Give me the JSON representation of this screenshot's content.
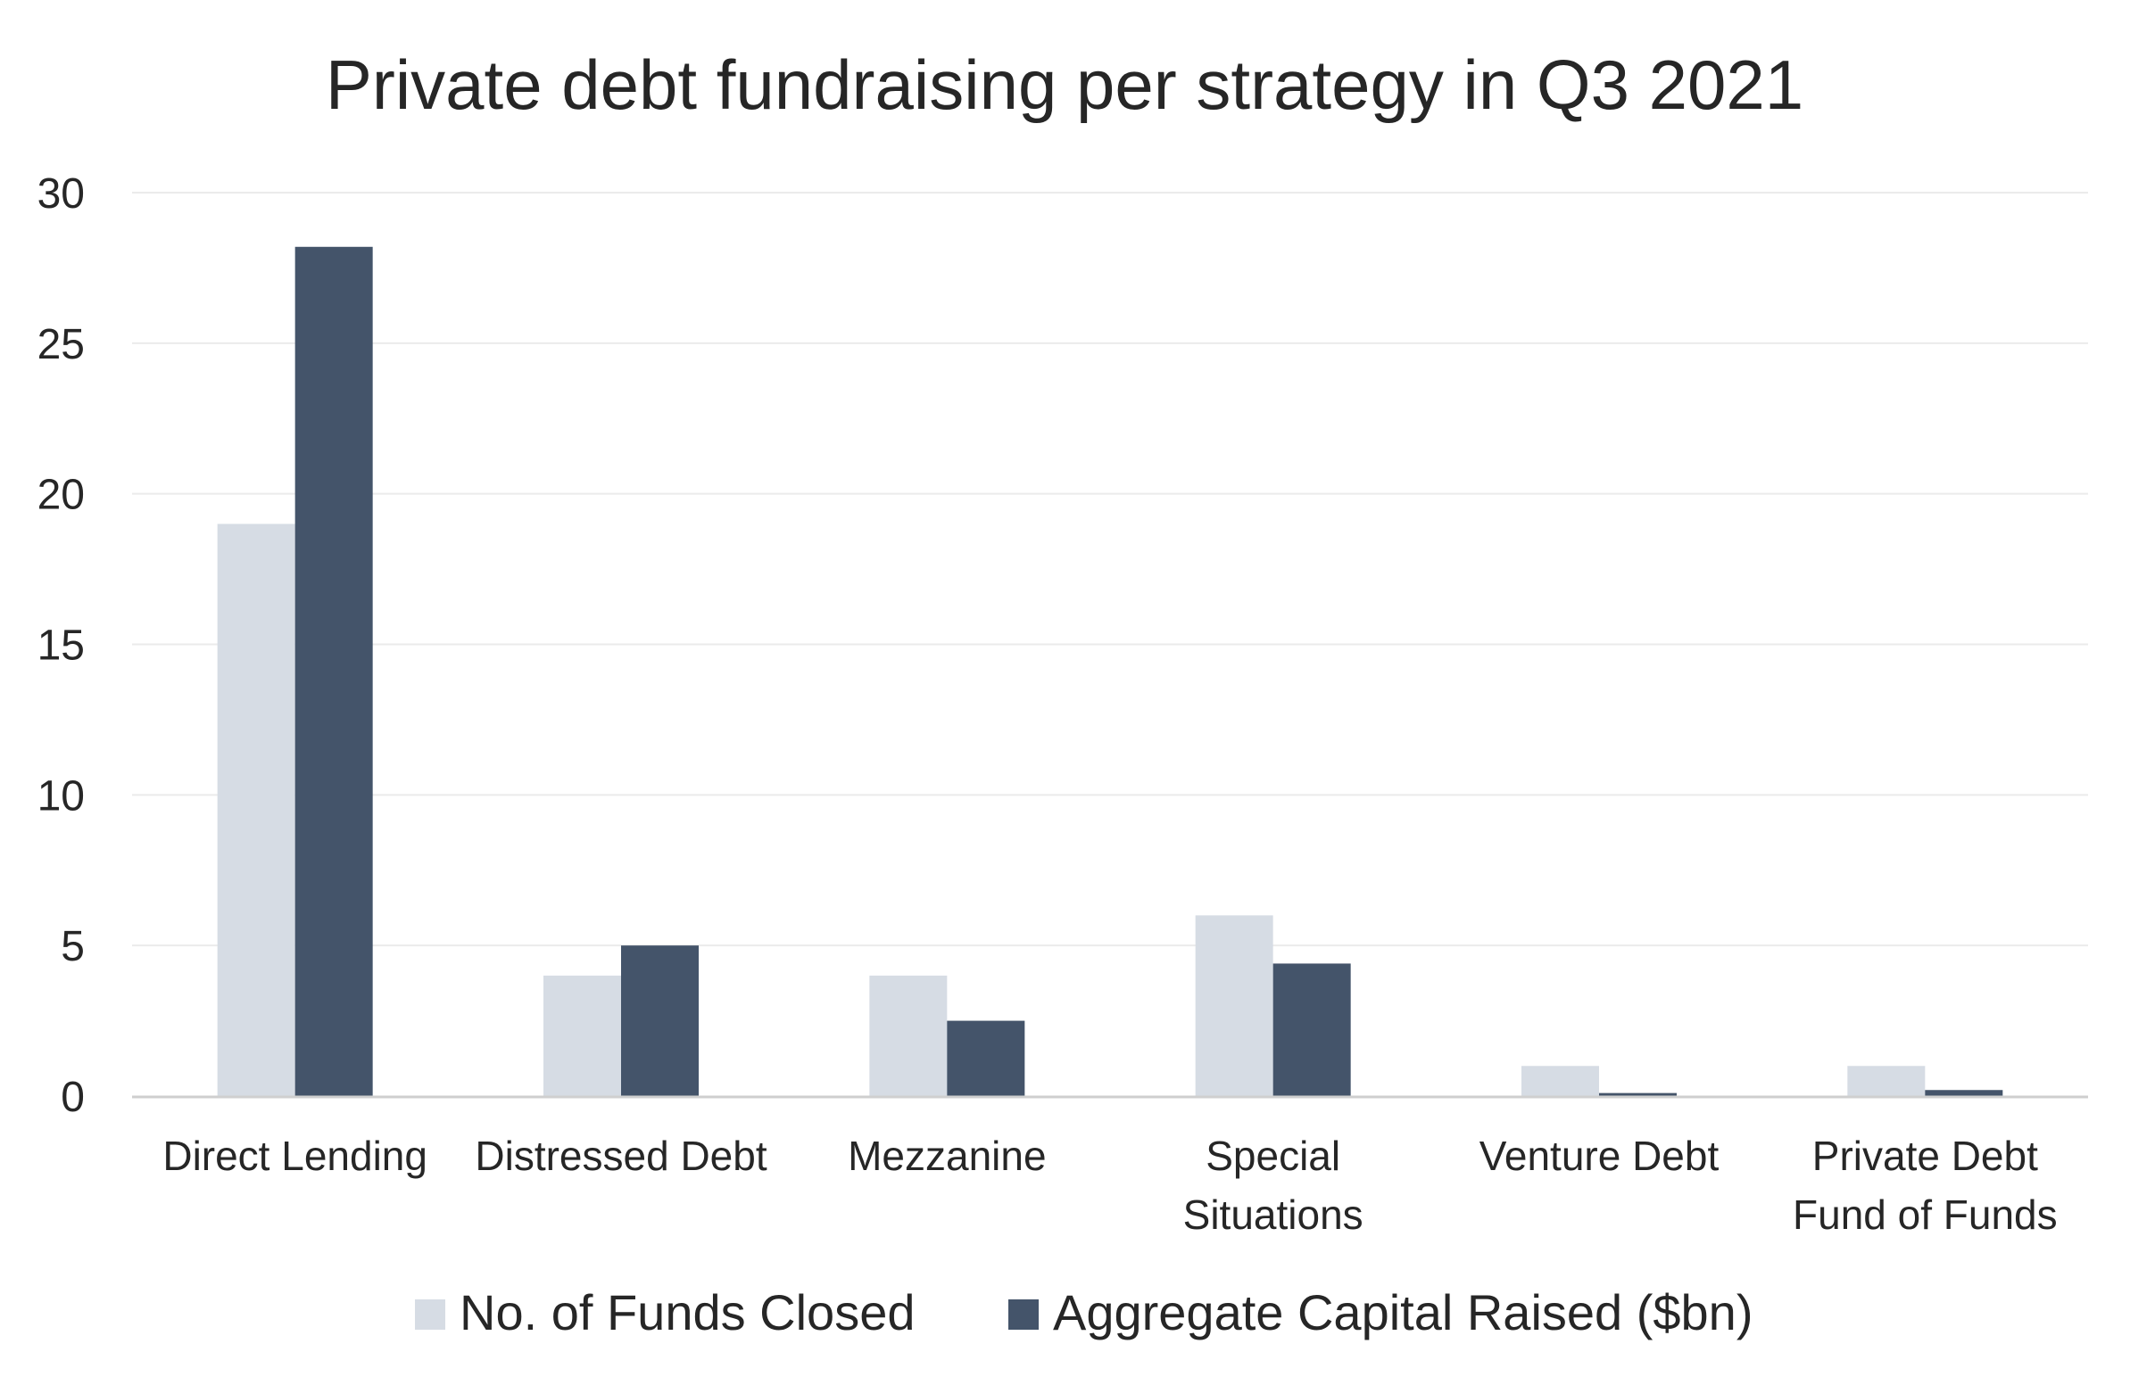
{
  "chart_data": {
    "type": "bar",
    "title": "Private debt fundraising per strategy in Q3 2021",
    "xlabel": "",
    "ylabel": "",
    "ylim": [
      0,
      30
    ],
    "yticks": [
      "0",
      "5",
      "10",
      "15",
      "20",
      "25",
      "30"
    ],
    "grid": true,
    "legend_position": "bottom",
    "categories": [
      [
        "Direct Lending"
      ],
      [
        "Distressed Debt"
      ],
      [
        "Mezzanine"
      ],
      [
        "Special",
        "Situations"
      ],
      [
        "Venture Debt"
      ],
      [
        "Private Debt",
        "Fund of Funds"
      ]
    ],
    "series": [
      {
        "name": "No. of Funds Closed",
        "color": "#d6dce4",
        "values": [
          19,
          4,
          4,
          6,
          1,
          1
        ]
      },
      {
        "name": "Aggregate Capital Raised ($bn)",
        "color": "#44546a",
        "values": [
          28.2,
          5.0,
          2.5,
          4.4,
          0.1,
          0.2
        ]
      }
    ]
  }
}
